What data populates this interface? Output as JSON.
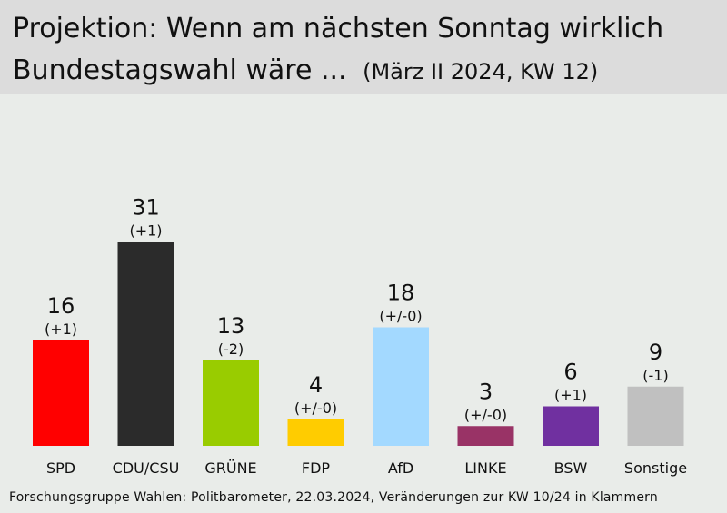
{
  "title": {
    "line1": "Projektion: Wenn am nächsten Sonntag wirklich",
    "line2": "Bundestagswahl wäre ...",
    "subtitle": "(März II 2024, KW 12)"
  },
  "footer": "Forschungsgruppe Wahlen: Politbarometer, 22.03.2024, Veränderungen zur KW 10/24 in Klammern",
  "chart_data": {
    "type": "bar",
    "categories": [
      "SPD",
      "CDU/CSU",
      "GRÜNE",
      "FDP",
      "AfD",
      "LINKE",
      "BSW",
      "Sonstige"
    ],
    "values": [
      16,
      31,
      13,
      4,
      18,
      3,
      6,
      9
    ],
    "changes": [
      "(+1)",
      "(+1)",
      "(-2)",
      "(+/-0)",
      "(+/-0)",
      "(+/-0)",
      "(+1)",
      "(-1)"
    ],
    "colors": [
      "#ff0000",
      "#2b2b2b",
      "#99cc00",
      "#ffcc00",
      "#a3d9ff",
      "#993366",
      "#7030a0",
      "#c0c0c0"
    ],
    "grid": false,
    "legend": "none"
  }
}
